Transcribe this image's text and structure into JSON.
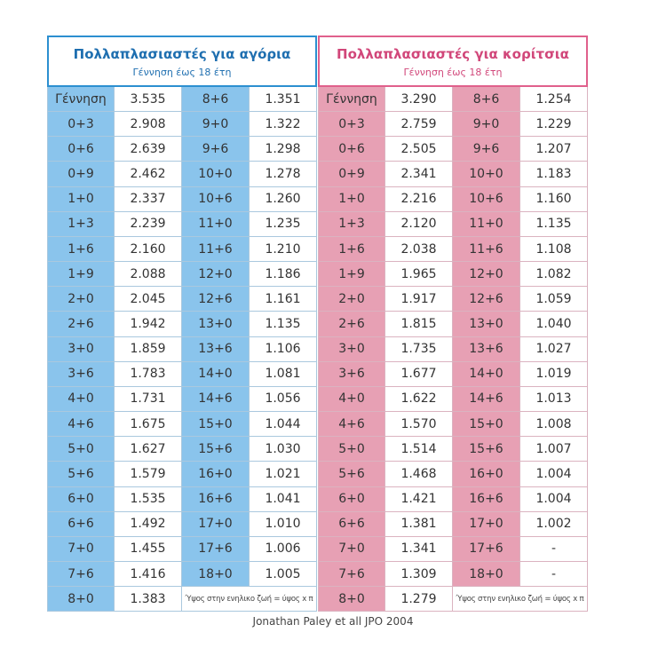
{
  "boys": {
    "title": "Πολλαπλασιαστές για αγόρια",
    "subtitle": "Γέννηση έως 18 έτη",
    "rows": [
      [
        "Γέννηση",
        "3.535",
        "8+6",
        "1.351"
      ],
      [
        "0+3",
        "2.908",
        "9+0",
        "1.322"
      ],
      [
        "0+6",
        "2.639",
        "9+6",
        "1.298"
      ],
      [
        "0+9",
        "2.462",
        "10+0",
        "1.278"
      ],
      [
        "1+0",
        "2.337",
        "10+6",
        "1.260"
      ],
      [
        "1+3",
        "2.239",
        "11+0",
        "1.235"
      ],
      [
        "1+6",
        "2.160",
        "11+6",
        "1.210"
      ],
      [
        "1+9",
        "2.088",
        "12+0",
        "1.186"
      ],
      [
        "2+0",
        "2.045",
        "12+6",
        "1.161"
      ],
      [
        "2+6",
        "1.942",
        "13+0",
        "1.135"
      ],
      [
        "3+0",
        "1.859",
        "13+6",
        "1.106"
      ],
      [
        "3+6",
        "1.783",
        "14+0",
        "1.081"
      ],
      [
        "4+0",
        "1.731",
        "14+6",
        "1.056"
      ],
      [
        "4+6",
        "1.675",
        "15+0",
        "1.044"
      ],
      [
        "5+0",
        "1.627",
        "15+6",
        "1.030"
      ],
      [
        "5+6",
        "1.579",
        "16+0",
        "1.021"
      ],
      [
        "6+0",
        "1.535",
        "16+6",
        "1.041"
      ],
      [
        "6+6",
        "1.492",
        "17+0",
        "1.010"
      ],
      [
        "7+0",
        "1.455",
        "17+6",
        "1.006"
      ],
      [
        "7+6",
        "1.416",
        "18+0",
        "1.005"
      ]
    ],
    "last_age": "8+0",
    "last_value": "1.383",
    "note": "Ύψος στην ενηλικο ζωή = ύψος x π"
  },
  "girls": {
    "title": "Πολλαπλασιαστές για κορίτσια",
    "subtitle": "Γέννηση έως 18 έτη",
    "rows": [
      [
        "Γέννηση",
        "3.290",
        "8+6",
        "1.254"
      ],
      [
        "0+3",
        "2.759",
        "9+0",
        "1.229"
      ],
      [
        "0+6",
        "2.505",
        "9+6",
        "1.207"
      ],
      [
        "0+9",
        "2.341",
        "10+0",
        "1.183"
      ],
      [
        "1+0",
        "2.216",
        "10+6",
        "1.160"
      ],
      [
        "1+3",
        "2.120",
        "11+0",
        "1.135"
      ],
      [
        "1+6",
        "2.038",
        "11+6",
        "1.108"
      ],
      [
        "1+9",
        "1.965",
        "12+0",
        "1.082"
      ],
      [
        "2+0",
        "1.917",
        "12+6",
        "1.059"
      ],
      [
        "2+6",
        "1.815",
        "13+0",
        "1.040"
      ],
      [
        "3+0",
        "1.735",
        "13+6",
        "1.027"
      ],
      [
        "3+6",
        "1.677",
        "14+0",
        "1.019"
      ],
      [
        "4+0",
        "1.622",
        "14+6",
        "1.013"
      ],
      [
        "4+6",
        "1.570",
        "15+0",
        "1.008"
      ],
      [
        "5+0",
        "1.514",
        "15+6",
        "1.007"
      ],
      [
        "5+6",
        "1.468",
        "16+0",
        "1.004"
      ],
      [
        "6+0",
        "1.421",
        "16+6",
        "1.004"
      ],
      [
        "6+6",
        "1.381",
        "17+0",
        "1.002"
      ],
      [
        "7+0",
        "1.341",
        "17+6",
        "-"
      ],
      [
        "7+6",
        "1.309",
        "18+0",
        "-"
      ]
    ],
    "last_age": "8+0",
    "last_value": "1.279",
    "note": "Ύψος στην ενηλικο ζωή = ύψος x π"
  },
  "citation": "Jonathan Paley et all JPO 2004"
}
